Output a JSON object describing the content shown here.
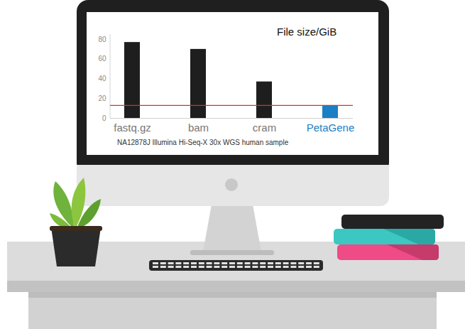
{
  "chart_data": {
    "type": "bar",
    "title": "File size/GiB",
    "categories": [
      "fastq.gz",
      "bam",
      "cram",
      "PetaGene"
    ],
    "values": [
      77,
      70,
      37,
      13
    ],
    "colors": [
      "#1e1e1e",
      "#1e1e1e",
      "#1e1e1e",
      "#1b7fc4"
    ],
    "ylim": [
      0,
      80
    ],
    "yticks": [
      0,
      20,
      40,
      60,
      80
    ],
    "reference_line": 13,
    "caption": "NA12878J Illumina Hi-Seq-X 30x WGS human sample",
    "grid": false
  }
}
